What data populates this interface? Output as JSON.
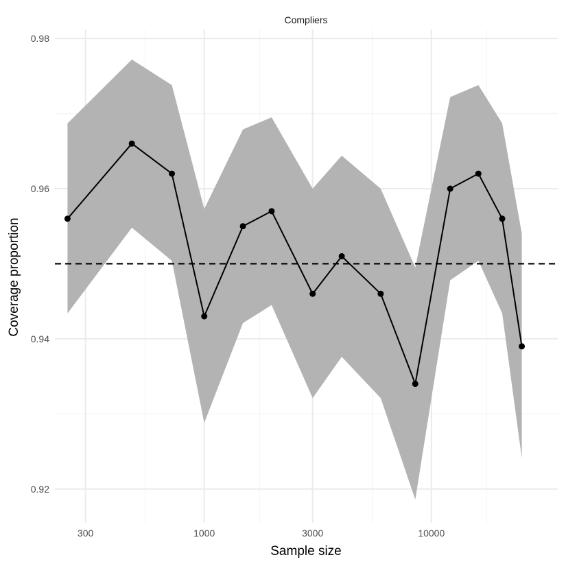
{
  "chart_data": {
    "type": "line",
    "title": "Compliers",
    "xlabel": "Sample size",
    "ylabel": "Coverage proportion",
    "x_scale": "log10",
    "xlim": [
      220,
      36000
    ],
    "ylim": [
      0.9155,
      0.9812
    ],
    "x_ticks": [
      300,
      1000,
      3000,
      10000
    ],
    "x_tick_labels": [
      "300",
      "1000",
      "3000",
      "10000"
    ],
    "x_minor_gridlines": [
      550,
      1750,
      5500,
      17500
    ],
    "y_ticks": [
      0.92,
      0.94,
      0.96,
      0.98
    ],
    "y_tick_labels": [
      "0.92",
      "0.94",
      "0.96",
      "0.98"
    ],
    "y_minor_gridlines": [
      0.93,
      0.95,
      0.97
    ],
    "grid": true,
    "reference_line": {
      "y": 0.95,
      "style": "dashed",
      "color": "#000000"
    },
    "series": [
      {
        "x": [
          250,
          480,
          720,
          1000,
          1480,
          1980,
          3000,
          4030,
          5980,
          8490,
          12100,
          16100,
          20500,
          25000
        ],
        "y": [
          0.956,
          0.966,
          0.962,
          0.943,
          0.955,
          0.957,
          0.946,
          0.951,
          0.946,
          0.934,
          0.96,
          0.962,
          0.956,
          0.939
        ],
        "lower": [
          0.9434,
          0.9548,
          0.9504,
          0.9288,
          0.9421,
          0.9445,
          0.9321,
          0.9376,
          0.9321,
          0.9186,
          0.9478,
          0.9504,
          0.9434,
          0.9241
        ],
        "upper": [
          0.9687,
          0.9772,
          0.9738,
          0.9573,
          0.9679,
          0.9695,
          0.96,
          0.9644,
          0.96,
          0.9495,
          0.9722,
          0.9738,
          0.9687,
          0.954
        ],
        "line_color": "#000000",
        "ribbon_color": "#b3b3b3"
      }
    ]
  }
}
